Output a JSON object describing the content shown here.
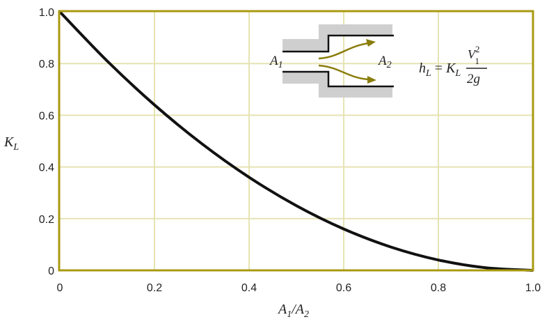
{
  "chart_data": {
    "type": "line",
    "xlabel": "A1/A2",
    "ylabel": "KL",
    "xlim": [
      0,
      1.0
    ],
    "ylim": [
      0,
      1.0
    ],
    "grid": true,
    "x_ticks": [
      "0",
      "0.2",
      "0.4",
      "0.6",
      "0.8",
      "1.0"
    ],
    "y_ticks": [
      "0",
      "0.2",
      "0.4",
      "0.6",
      "0.8",
      "1.0"
    ],
    "series": [
      {
        "x": [
          0,
          0.1,
          0.2,
          0.3,
          0.4,
          0.5,
          0.6,
          0.7,
          0.8,
          0.9,
          1.0
        ],
        "y": [
          1.0,
          0.81,
          0.64,
          0.49,
          0.36,
          0.25,
          0.16,
          0.09,
          0.04,
          0.01,
          0
        ]
      }
    ],
    "colors": {
      "frame": "#a89a10",
      "grid": "#e6e3b4",
      "curve": "#111111",
      "flow_arrow": "#8a7d0c",
      "wall": "#cfcfcf"
    },
    "inset": {
      "label_a1": "A1",
      "label_a2": "A2",
      "equation": {
        "lhs": "hL",
        "equals": "=",
        "coef": "KL",
        "numerator": "V1²",
        "denominator": "2g"
      }
    }
  }
}
